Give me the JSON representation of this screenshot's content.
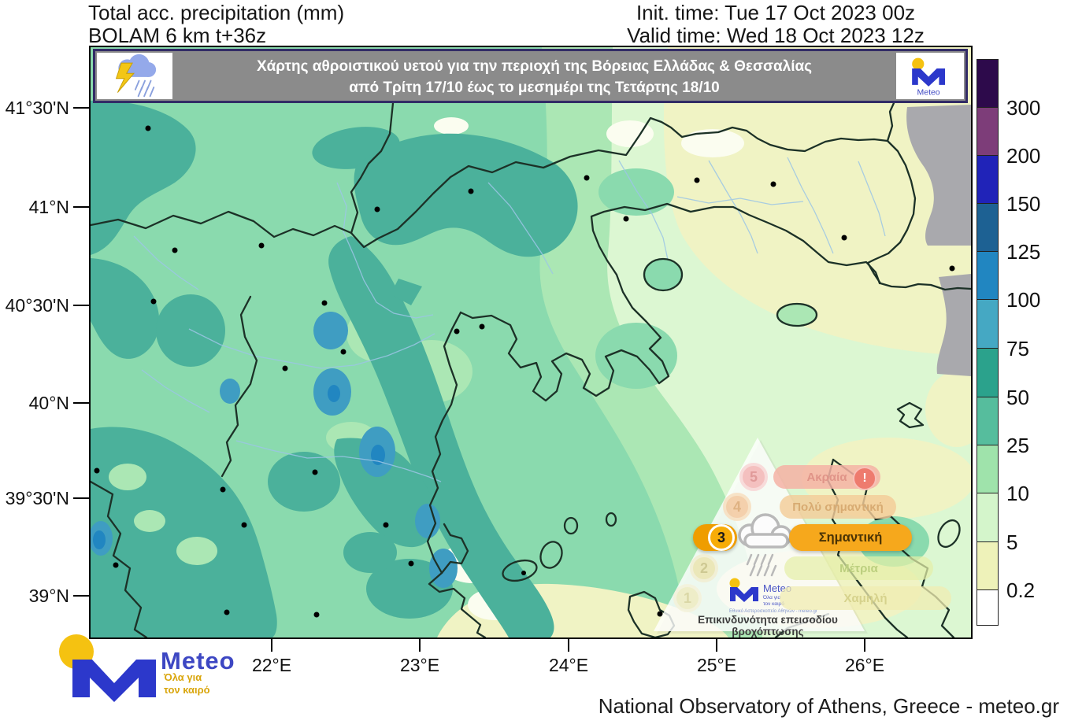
{
  "header": {
    "left_line1": "Total acc. precipitation (mm)",
    "left_line2": "BOLAM 6 km t+36z",
    "right_line1": "Init. time: Tue 17 Oct 2023 00z",
    "right_line2": "Valid time: Wed 18 Oct 2023 12z"
  },
  "banner": {
    "line1": "Χάρτης αθροιστικού υετού για την περιοχή της Βόρειας Ελλάδας & Θεσσαλίας",
    "line2": "από Τρίτη 17/10 έως το μεσημέρι της Τετάρτης 18/10",
    "bg_color": "#8b8b8b",
    "border_color": "#322b66",
    "logo_text": "Meteo"
  },
  "axes": {
    "lat_labels": [
      "41°30'N",
      "41°N",
      "40°30'N",
      "40°N",
      "39°30'N",
      "39°N"
    ],
    "lon_labels": [
      "22°E",
      "23°E",
      "24°E",
      "25°E",
      "26°E"
    ]
  },
  "colorbar": {
    "unit": "mm",
    "labels": [
      "300",
      "200",
      "150",
      "125",
      "100",
      "75",
      "50",
      "25",
      "10",
      "5",
      "0.2"
    ],
    "colors_top_to_bottom": [
      "#2d0a4b",
      "#7d3d79",
      "#2023b8",
      "#1d6193",
      "#2186c1",
      "#45a8c3",
      "#2ba28c",
      "#56bd9d",
      "#9fe3ab",
      "#d4f5cb",
      "#eef2b9",
      "#ffffff"
    ]
  },
  "map_palette": {
    "band_25_50": "#8adaae",
    "band_50_75": "#4bb19b",
    "band_75_100": "#3f9dc2",
    "band_100_125": "#2186c1",
    "band_10_25": "#abe7b4",
    "band_5_10": "#dcf7d2",
    "band_02_5": "#f0f3c4",
    "no_data_gray": "#a9a9ad",
    "border_line": "#1c3127",
    "river_line": "#9cc6e6"
  },
  "pyramid": {
    "caption": "Επικινδυνότητα επεισοδίου βροχόπτωσης",
    "active_color": "#f6a81c",
    "levels": [
      {
        "num": "5",
        "label": "Ακραία",
        "active": false,
        "alert": "!",
        "alert_bg": "#ee7b6e",
        "alert_ring": "#f8c0b8",
        "pill_bg": "rgba(244,178,164,0.85)",
        "pill_text": "#e09488",
        "badge_bg": "#f4b6b6",
        "badge_ring": "#f9d6d6",
        "badge_text": "#dd8a8a"
      },
      {
        "num": "4",
        "label": "Πολύ σημαντική",
        "active": false,
        "pill_bg": "rgba(243,204,152,0.82)",
        "pill_text": "#d8ab72",
        "badge_bg": "#f4c9a0",
        "badge_ring": "#f8dfc0",
        "badge_text": "#dca670"
      },
      {
        "num": "3",
        "label": "Σημαντική",
        "active": true,
        "pill_bg": "#f6a81c",
        "pill_text": "#4a3305",
        "badge_bg": "#f7ac07",
        "badge_ring": "#ffffff",
        "badge_text": "#1a1a1a",
        "badge_tab": "#ef9d00"
      },
      {
        "num": "2",
        "label": "Μέτρια",
        "active": false,
        "pill_bg": "rgba(228,238,168,0.72)",
        "pill_text": "#bccf7f",
        "badge_bg": "#ebe5b0",
        "badge_ring": "#f2eed2",
        "badge_text": "#c9c183"
      },
      {
        "num": "1",
        "label": "Χαμηλή",
        "active": false,
        "pill_bg": "rgba(240,236,178,0.75)",
        "pill_text": "#d6d28c",
        "badge_bg": "#efecc2",
        "badge_ring": "#f5f2da",
        "badge_text": "#d7d29a"
      }
    ],
    "logo": {
      "name": "Meteo",
      "tagline1": "Όλα για",
      "tagline2": "τον καιρό",
      "org": "Εθνικό Αστεροσκοπείο Αθηνών - meteo.gr"
    }
  },
  "footer": {
    "logo_name": "Meteo",
    "logo_tagline1": "Όλα για",
    "logo_tagline2": "τον καιρό",
    "logo_blue": "#2c38cb",
    "logo_gold": "#f5c211",
    "attribution": "National Observatory of Athens, Greece - meteo.gr"
  }
}
